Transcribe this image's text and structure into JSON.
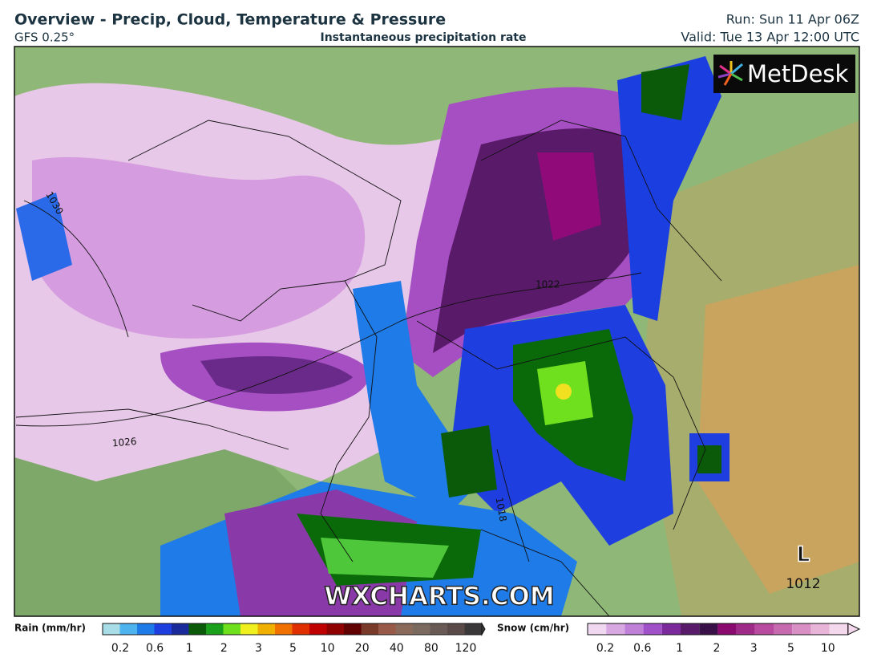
{
  "header": {
    "title": "Overview - Precip, Cloud, Temperature & Pressure",
    "model": "GFS 0.25°",
    "subtitle": "Instantaneous precipitation rate",
    "run": "Run: Sun 11 Apr 06Z",
    "valid": "Valid: Tue 13 Apr 12:00 UTC"
  },
  "map": {
    "isobars": [
      "1030",
      "1026",
      "1022",
      "1018",
      "1012"
    ],
    "low": "L",
    "logo": "MetDesk",
    "watermark": "WXCHARTS.COM"
  },
  "legend": {
    "rain": {
      "label": "Rain (mm/hr)",
      "ticks": [
        0.2,
        0.6,
        1,
        2,
        3,
        5,
        10,
        20,
        40,
        80,
        120
      ]
    },
    "snow": {
      "label": "Snow (cm/hr)",
      "ticks": [
        0.2,
        0.6,
        1,
        2,
        3,
        5,
        10
      ]
    }
  }
}
